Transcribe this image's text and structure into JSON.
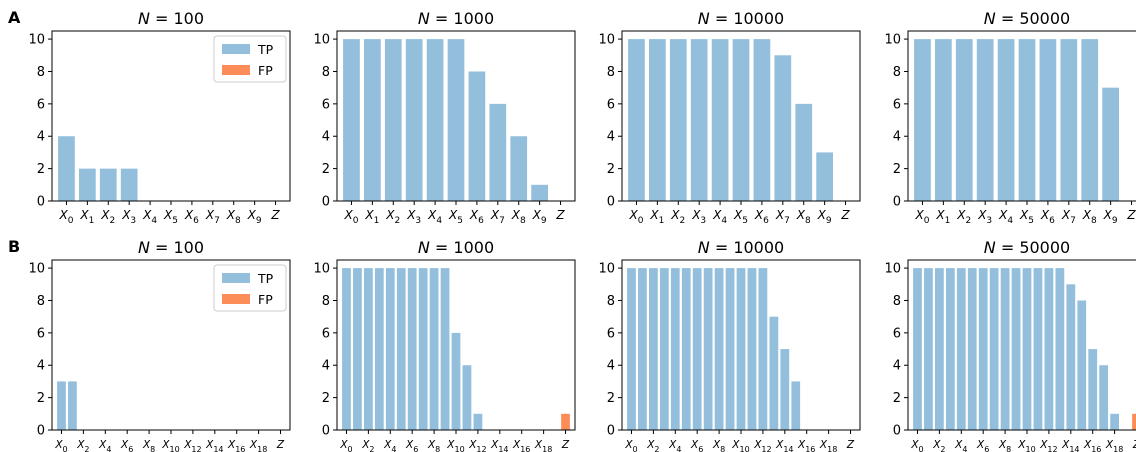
{
  "panel_labels": [
    "A",
    "B"
  ],
  "legend": [
    {
      "label": "TP",
      "color": "#93bfdc"
    },
    {
      "label": "FP",
      "color": "#fc8d59"
    }
  ],
  "colors": {
    "tp": "#93bfdc",
    "fp": "#fc8d59"
  },
  "chart_data": [
    {
      "type": "bar",
      "row": "A",
      "title": "N = 100",
      "ylim": [
        0,
        10.5
      ],
      "yticks": [
        0,
        2,
        4,
        6,
        8,
        10
      ],
      "legend": true,
      "categories": [
        "X_0",
        "X_1",
        "X_2",
        "X_3",
        "X_4",
        "X_5",
        "X_6",
        "X_7",
        "X_8",
        "X_9",
        "Z"
      ],
      "series": [
        {
          "name": "TP",
          "values": [
            4,
            2,
            2,
            2,
            0,
            0,
            0,
            0,
            0,
            0,
            0
          ]
        },
        {
          "name": "FP",
          "values": [
            0,
            0,
            0,
            0,
            0,
            0,
            0,
            0,
            0,
            0,
            0
          ]
        }
      ]
    },
    {
      "type": "bar",
      "row": "A",
      "title": "N = 1000",
      "ylim": [
        0,
        10.5
      ],
      "yticks": [
        0,
        2,
        4,
        6,
        8,
        10
      ],
      "legend": false,
      "categories": [
        "X_0",
        "X_1",
        "X_2",
        "X_3",
        "X_4",
        "X_5",
        "X_6",
        "X_7",
        "X_8",
        "X_9",
        "Z"
      ],
      "series": [
        {
          "name": "TP",
          "values": [
            10,
            10,
            10,
            10,
            10,
            10,
            8,
            6,
            4,
            1,
            0
          ]
        },
        {
          "name": "FP",
          "values": [
            0,
            0,
            0,
            0,
            0,
            0,
            0,
            0,
            0,
            0,
            0
          ]
        }
      ]
    },
    {
      "type": "bar",
      "row": "A",
      "title": "N = 10000",
      "ylim": [
        0,
        10.5
      ],
      "yticks": [
        0,
        2,
        4,
        6,
        8,
        10
      ],
      "legend": false,
      "categories": [
        "X_0",
        "X_1",
        "X_2",
        "X_3",
        "X_4",
        "X_5",
        "X_6",
        "X_7",
        "X_8",
        "X_9",
        "Z"
      ],
      "series": [
        {
          "name": "TP",
          "values": [
            10,
            10,
            10,
            10,
            10,
            10,
            10,
            9,
            6,
            3,
            0
          ]
        },
        {
          "name": "FP",
          "values": [
            0,
            0,
            0,
            0,
            0,
            0,
            0,
            0,
            0,
            0,
            0
          ]
        }
      ]
    },
    {
      "type": "bar",
      "row": "A",
      "title": "N = 50000",
      "ylim": [
        0,
        10.5
      ],
      "yticks": [
        0,
        2,
        4,
        6,
        8,
        10
      ],
      "legend": false,
      "categories": [
        "X_0",
        "X_1",
        "X_2",
        "X_3",
        "X_4",
        "X_5",
        "X_6",
        "X_7",
        "X_8",
        "X_9",
        "Z"
      ],
      "series": [
        {
          "name": "TP",
          "values": [
            10,
            10,
            10,
            10,
            10,
            10,
            10,
            10,
            10,
            7,
            0
          ]
        },
        {
          "name": "FP",
          "values": [
            0,
            0,
            0,
            0,
            0,
            0,
            0,
            0,
            0,
            0,
            0
          ]
        }
      ]
    },
    {
      "type": "bar",
      "row": "B",
      "title": "N = 100",
      "ylim": [
        0,
        10.5
      ],
      "yticks": [
        0,
        2,
        4,
        6,
        8,
        10
      ],
      "legend": true,
      "categories": [
        "X_0",
        "X_1",
        "X_2",
        "X_3",
        "X_4",
        "X_5",
        "X_6",
        "X_7",
        "X_8",
        "X_9",
        "X_10",
        "X_11",
        "X_12",
        "X_13",
        "X_14",
        "X_15",
        "X_16",
        "X_17",
        "X_18",
        "X_19",
        "Z"
      ],
      "tick_labels_shown": [
        "X_0",
        "X_2",
        "X_4",
        "X_6",
        "X_8",
        "X_10",
        "X_12",
        "X_14",
        "X_16",
        "X_18",
        "Z"
      ],
      "series": [
        {
          "name": "TP",
          "values": [
            3,
            3,
            0,
            0,
            0,
            0,
            0,
            0,
            0,
            0,
            0,
            0,
            0,
            0,
            0,
            0,
            0,
            0,
            0,
            0,
            0
          ]
        },
        {
          "name": "FP",
          "values": [
            0,
            0,
            0,
            0,
            0,
            0,
            0,
            0,
            0,
            0,
            0,
            0,
            0,
            0,
            0,
            0,
            0,
            0,
            0,
            0,
            0
          ]
        }
      ]
    },
    {
      "type": "bar",
      "row": "B",
      "title": "N = 1000",
      "ylim": [
        0,
        10.5
      ],
      "yticks": [
        0,
        2,
        4,
        6,
        8,
        10
      ],
      "legend": false,
      "categories": [
        "X_0",
        "X_1",
        "X_2",
        "X_3",
        "X_4",
        "X_5",
        "X_6",
        "X_7",
        "X_8",
        "X_9",
        "X_10",
        "X_11",
        "X_12",
        "X_13",
        "X_14",
        "X_15",
        "X_16",
        "X_17",
        "X_18",
        "X_19",
        "Z"
      ],
      "tick_labels_shown": [
        "X_0",
        "X_2",
        "X_4",
        "X_6",
        "X_8",
        "X_10",
        "X_12",
        "X_14",
        "X_16",
        "X_18",
        "Z"
      ],
      "series": [
        {
          "name": "TP",
          "values": [
            10,
            10,
            10,
            10,
            10,
            10,
            10,
            10,
            10,
            10,
            6,
            4,
            1,
            0,
            0,
            0,
            0,
            0,
            0,
            0,
            0
          ]
        },
        {
          "name": "FP",
          "values": [
            0,
            0,
            0,
            0,
            0,
            0,
            0,
            0,
            0,
            0,
            0,
            0,
            0,
            0,
            0,
            0,
            0,
            0,
            0,
            0,
            1
          ]
        }
      ]
    },
    {
      "type": "bar",
      "row": "B",
      "title": "N = 10000",
      "ylim": [
        0,
        10.5
      ],
      "yticks": [
        0,
        2,
        4,
        6,
        8,
        10
      ],
      "legend": false,
      "categories": [
        "X_0",
        "X_1",
        "X_2",
        "X_3",
        "X_4",
        "X_5",
        "X_6",
        "X_7",
        "X_8",
        "X_9",
        "X_10",
        "X_11",
        "X_12",
        "X_13",
        "X_14",
        "X_15",
        "X_16",
        "X_17",
        "X_18",
        "X_19",
        "Z"
      ],
      "tick_labels_shown": [
        "X_0",
        "X_2",
        "X_4",
        "X_6",
        "X_8",
        "X_10",
        "X_12",
        "X_14",
        "X_16",
        "X_18",
        "Z"
      ],
      "series": [
        {
          "name": "TP",
          "values": [
            10,
            10,
            10,
            10,
            10,
            10,
            10,
            10,
            10,
            10,
            10,
            10,
            10,
            7,
            5,
            3,
            0,
            0,
            0,
            0,
            0
          ]
        },
        {
          "name": "FP",
          "values": [
            0,
            0,
            0,
            0,
            0,
            0,
            0,
            0,
            0,
            0,
            0,
            0,
            0,
            0,
            0,
            0,
            0,
            0,
            0,
            0,
            0
          ]
        }
      ]
    },
    {
      "type": "bar",
      "row": "B",
      "title": "N = 50000",
      "ylim": [
        0,
        10.5
      ],
      "yticks": [
        0,
        2,
        4,
        6,
        8,
        10
      ],
      "legend": false,
      "categories": [
        "X_0",
        "X_1",
        "X_2",
        "X_3",
        "X_4",
        "X_5",
        "X_6",
        "X_7",
        "X_8",
        "X_9",
        "X_10",
        "X_11",
        "X_12",
        "X_13",
        "X_14",
        "X_15",
        "X_16",
        "X_17",
        "X_18",
        "X_19",
        "Z"
      ],
      "tick_labels_shown": [
        "X_0",
        "X_2",
        "X_4",
        "X_6",
        "X_8",
        "X_10",
        "X_12",
        "X_14",
        "X_16",
        "X_18",
        "Z"
      ],
      "series": [
        {
          "name": "TP",
          "values": [
            10,
            10,
            10,
            10,
            10,
            10,
            10,
            10,
            10,
            10,
            10,
            10,
            10,
            10,
            9,
            8,
            5,
            4,
            1,
            0,
            0
          ]
        },
        {
          "name": "FP",
          "values": [
            0,
            0,
            0,
            0,
            0,
            0,
            0,
            0,
            0,
            0,
            0,
            0,
            0,
            0,
            0,
            0,
            0,
            0,
            0,
            0,
            1
          ]
        }
      ]
    }
  ]
}
